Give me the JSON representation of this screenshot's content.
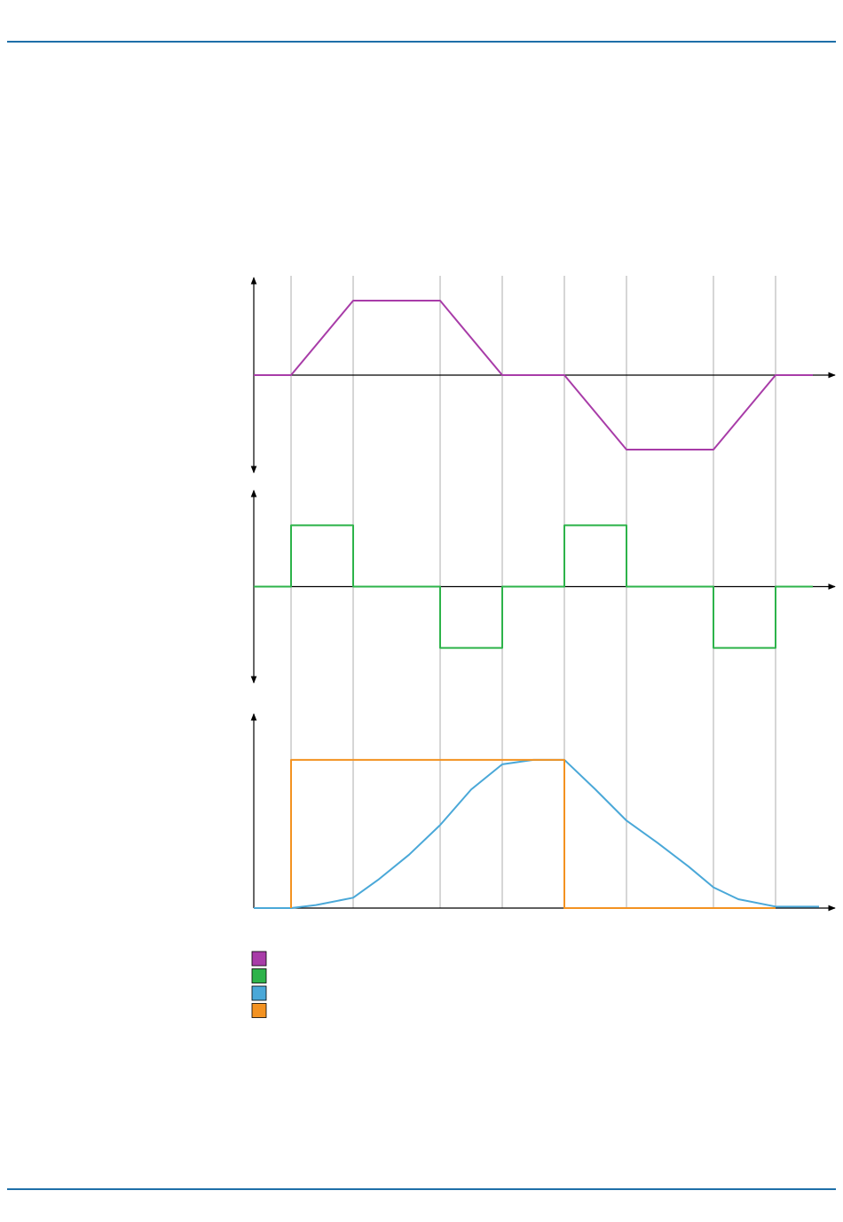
{
  "chart_data": [
    {
      "type": "line",
      "xlim": [
        0,
        93
      ],
      "ylim": [
        -1.31,
        1.31
      ],
      "xticks": [
        6,
        16,
        30,
        40,
        50,
        60,
        74,
        84
      ],
      "grid": true,
      "series": [
        {
          "color": "#a83ca8",
          "x": [
            0,
            6,
            16,
            30,
            40,
            50,
            60,
            74,
            84,
            90
          ],
          "values": [
            0,
            0,
            1,
            1,
            0,
            0,
            -1,
            -1,
            0,
            0
          ]
        }
      ]
    },
    {
      "type": "line",
      "xlim": [
        0,
        93
      ],
      "ylim": [
        -1.57,
        1.57
      ],
      "xticks": [
        6,
        16,
        30,
        40,
        50,
        60,
        74,
        84
      ],
      "grid": true,
      "series": [
        {
          "color": "#2db34a",
          "x": [
            0,
            6,
            6,
            16,
            16,
            30,
            30,
            40,
            40,
            50,
            50,
            60,
            60,
            74,
            74,
            84,
            84,
            90
          ],
          "values": [
            0,
            0,
            1,
            1,
            0,
            0,
            -1,
            -1,
            0,
            0,
            1,
            1,
            0,
            0,
            -1,
            -1,
            0,
            0
          ]
        }
      ]
    },
    {
      "type": "line",
      "xlim": [
        0,
        93
      ],
      "ylim": [
        0,
        1.31
      ],
      "xticks": [
        6,
        16,
        30,
        40,
        50,
        60,
        74,
        84
      ],
      "grid": true,
      "series": [
        {
          "color": "#4aa8d8",
          "x": [
            0,
            6,
            10,
            16,
            20,
            25,
            30,
            35,
            40,
            45,
            50,
            55,
            60,
            65,
            70,
            74,
            78,
            84,
            91
          ],
          "values": [
            0,
            0,
            0.02,
            0.07,
            0.19,
            0.36,
            0.56,
            0.8,
            0.97,
            1,
            1,
            0.8,
            0.59,
            0.44,
            0.28,
            0.14,
            0.06,
            0.01,
            0.01
          ]
        },
        {
          "color": "#f39221",
          "x": [
            6,
            6,
            50,
            50,
            84
          ],
          "values": [
            0,
            1,
            1,
            0,
            0
          ]
        }
      ]
    }
  ]
}
